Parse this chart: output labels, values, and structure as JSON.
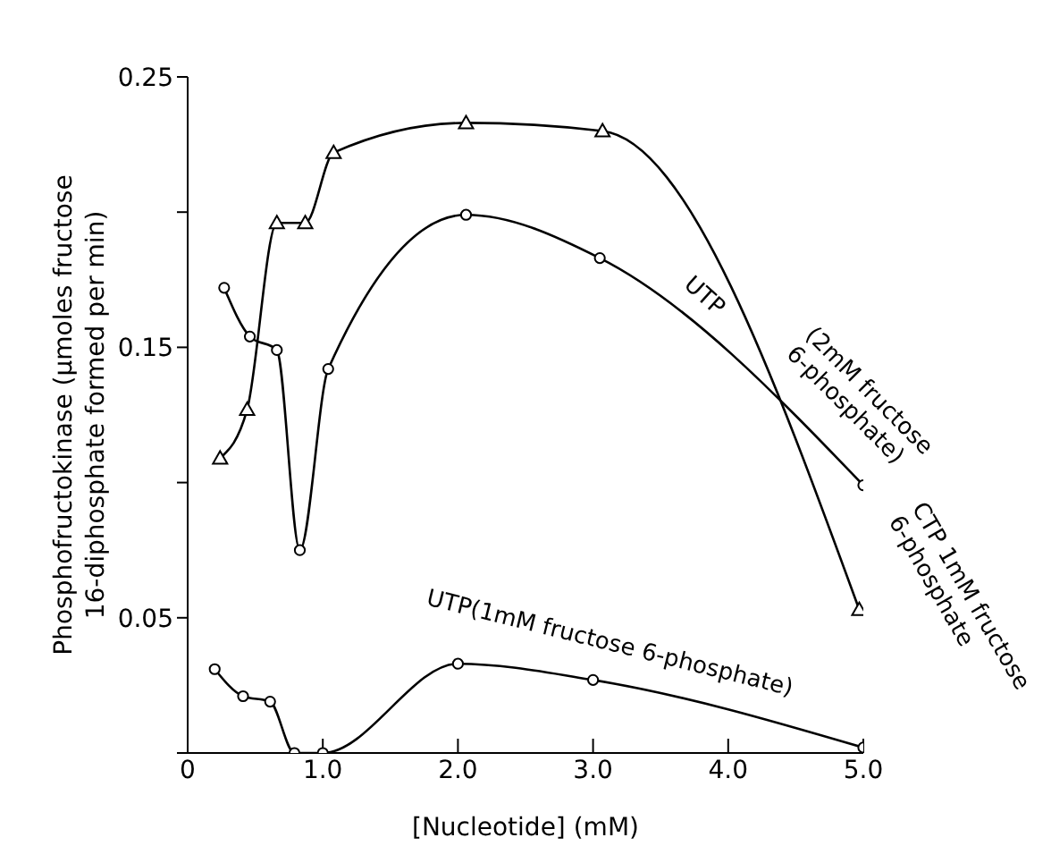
{
  "chart_data": {
    "type": "line",
    "ylabel": "Phosphofructokinase (µmoles fructose 16-diphosphate formed per min)",
    "xlabel": "[Nucleotide] (mM)",
    "xlim": [
      0,
      5
    ],
    "xticks": [
      {
        "value": 0,
        "label": "0"
      },
      {
        "value": 1,
        "label": "1.0"
      },
      {
        "value": 2,
        "label": "2.0"
      },
      {
        "value": 3,
        "label": "3.0"
      },
      {
        "value": 4,
        "label": "4.0"
      },
      {
        "value": 5,
        "label": "5.0"
      }
    ],
    "ylim": [
      0,
      0.25
    ],
    "yticks": [
      {
        "value": 0,
        "label": null
      },
      0.05,
      {
        "value": 0.1,
        "label": null
      },
      0.15,
      {
        "value": 0.2,
        "label": null
      },
      0.25
    ],
    "line_style": "solid",
    "series": [
      {
        "color": "#000000",
        "marker": "triangle",
        "x": [
          0.24,
          0.44,
          0.66,
          0.87,
          1.08,
          2.06,
          3.07,
          4.97
        ],
        "values": [
          0.109,
          0.127,
          0.196,
          0.196,
          0.222,
          0.233,
          0.23,
          0.053
        ]
      },
      {
        "color": "#000000",
        "marker": "circle",
        "x": [
          0.27,
          0.46,
          0.66,
          0.83,
          1.04,
          2.06,
          3.05,
          5.0
        ],
        "values": [
          0.172,
          0.154,
          0.149,
          0.075,
          0.142,
          0.199,
          0.183,
          0.099
        ]
      },
      {
        "color": "#000000",
        "marker": "circle",
        "x": [
          0.2,
          0.41,
          0.61,
          0.79,
          1.0,
          2.0,
          3.0,
          5.0
        ],
        "values": [
          0.031,
          0.021,
          0.019,
          0.0,
          0.0,
          0.033,
          0.027,
          0.002
        ]
      }
    ],
    "annotations": [
      "UTP(1mM fructose 6-phosphate)",
      "UTP",
      "(2mM fructose 6-phosphate)",
      "CTP 1mM fructose 6-phosphate"
    ]
  }
}
